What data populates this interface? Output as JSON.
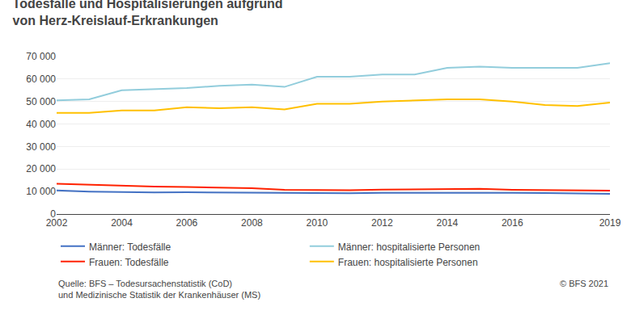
{
  "chart_data": {
    "type": "line",
    "title": "Todesfälle und Hospitalisierungen aufgrund\nvon Herz-Kreislauf-Erkrankungen",
    "x": [
      2002,
      2003,
      2004,
      2005,
      2006,
      2007,
      2008,
      2009,
      2010,
      2011,
      2012,
      2013,
      2014,
      2015,
      2016,
      2017,
      2018,
      2019
    ],
    "series": [
      {
        "name": "Männer: Todesfälle",
        "color": "#4472C4",
        "values": [
          10500,
          10000,
          9800,
          9600,
          9700,
          9600,
          9500,
          9200,
          9300,
          9200,
          9400,
          9400,
          9600,
          9500,
          9400,
          9300,
          9100,
          9000
        ]
      },
      {
        "name": "Männer: hospitalisierte Personen",
        "color": "#92CDDC",
        "values": [
          50500,
          51000,
          55000,
          55500,
          56000,
          57000,
          57500,
          56500,
          61000,
          61000,
          62000,
          62000,
          65000,
          65500,
          65000,
          65000,
          65000,
          67000
        ]
      },
      {
        "name": "Frauen: Todesfälle",
        "color": "#FF2200",
        "values": [
          13500,
          13000,
          12500,
          12200,
          12000,
          11800,
          11500,
          10800,
          10800,
          10600,
          10900,
          11000,
          11200,
          11200,
          10800,
          10600,
          10400,
          10400
        ]
      },
      {
        "name": "Frauen: hospitalisierte Personen",
        "color": "#FFC000",
        "values": [
          45000,
          45000,
          46000,
          46000,
          47500,
          47000,
          47500,
          46500,
          49000,
          49000,
          50000,
          50500,
          51000,
          51000,
          50000,
          48500,
          48000,
          49500
        ]
      }
    ],
    "xlim": [
      2002,
      2019
    ],
    "xticks": [
      2002,
      2004,
      2006,
      2008,
      2010,
      2012,
      2014,
      2016,
      2019
    ],
    "ylim": [
      0,
      70000
    ],
    "yticks": [
      0,
      {
        "value": 10000,
        "label": "10 000"
      },
      {
        "value": 20000,
        "label": "20 000"
      },
      {
        "value": 30000,
        "label": "30 000"
      },
      {
        "value": 40000,
        "label": "40 000"
      },
      {
        "value": 50000,
        "label": "50 000"
      },
      {
        "value": 60000,
        "label": "60 000"
      },
      {
        "value": 70000,
        "label": "70 000"
      }
    ],
    "grid": true,
    "legend": "bottom",
    "annotations": [
      "Quelle: BFS – Todesursachenstatistik (CoD)\nund Medizinische Statistik der Krankenhäuser (MS)",
      "© BFS 2021"
    ]
  }
}
